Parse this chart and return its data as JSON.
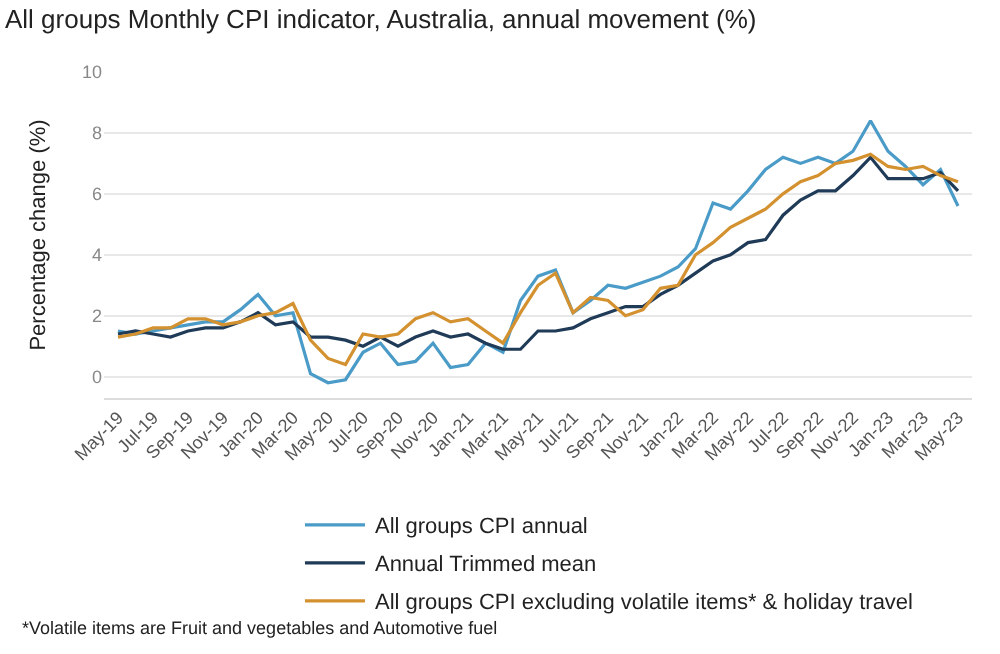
{
  "chart_data": {
    "type": "line",
    "title": "All groups Monthly CPI indicator, Australia, annual movement (%)",
    "ylabel": "Percentage change (%)",
    "categories": [
      "May-19",
      null,
      "Jul-19",
      null,
      "Sep-19",
      null,
      "Nov-19",
      null,
      "Jan-20",
      null,
      "Mar-20",
      null,
      "May-20",
      null,
      "Jul-20",
      null,
      "Sep-20",
      null,
      "Nov-20",
      null,
      "Jan-21",
      null,
      "Mar-21",
      null,
      "May-21",
      null,
      "Jul-21",
      null,
      "Sep-21",
      null,
      "Nov-21",
      null,
      "Jan-22",
      null,
      "Mar-22",
      null,
      "May-22",
      null,
      "Jul-22",
      null,
      "Sep-22",
      null,
      "Nov-22",
      null,
      "Jan-23",
      null,
      "Mar-23",
      null,
      "May-23"
    ],
    "series": [
      {
        "name": "All groups CPI annual",
        "color": "#4a9bc7",
        "values": [
          1.5,
          1.4,
          1.5,
          1.6,
          1.7,
          1.8,
          1.8,
          2.2,
          2.7,
          2.0,
          2.1,
          0.1,
          -0.2,
          -0.1,
          0.8,
          1.1,
          0.4,
          0.5,
          1.1,
          0.3,
          0.4,
          1.1,
          0.8,
          2.5,
          3.3,
          3.5,
          2.1,
          2.5,
          3.0,
          2.9,
          3.1,
          3.3,
          3.6,
          4.2,
          5.7,
          5.5,
          6.1,
          6.8,
          7.2,
          7.0,
          7.2,
          7.0,
          7.4,
          8.4,
          7.4,
          6.9,
          6.3,
          6.8,
          5.6
        ]
      },
      {
        "name": "Annual Trimmed mean",
        "color": "#1f3b57",
        "values": [
          1.4,
          1.5,
          1.4,
          1.3,
          1.5,
          1.6,
          1.6,
          1.8,
          2.1,
          1.7,
          1.8,
          1.3,
          1.3,
          1.2,
          1.0,
          1.3,
          1.0,
          1.3,
          1.5,
          1.3,
          1.4,
          1.1,
          0.9,
          0.9,
          1.5,
          1.5,
          1.6,
          1.9,
          2.1,
          2.3,
          2.3,
          2.7,
          3.0,
          3.4,
          3.8,
          4.0,
          4.4,
          4.5,
          5.3,
          5.8,
          6.1,
          6.1,
          6.6,
          7.2,
          6.5,
          6.5,
          6.5,
          6.7,
          6.1
        ]
      },
      {
        "name": "All groups CPI excluding volatile items* & holiday travel",
        "color": "#d4912f",
        "values": [
          1.3,
          1.4,
          1.6,
          1.6,
          1.9,
          1.9,
          1.7,
          1.8,
          2.0,
          2.1,
          2.4,
          1.2,
          0.6,
          0.4,
          1.4,
          1.3,
          1.4,
          1.9,
          2.1,
          1.8,
          1.9,
          1.5,
          1.1,
          2.1,
          3.0,
          3.4,
          2.1,
          2.6,
          2.5,
          2.0,
          2.2,
          2.9,
          3.0,
          4.0,
          4.4,
          4.9,
          5.2,
          5.5,
          6.0,
          6.4,
          6.6,
          7.0,
          7.1,
          7.3,
          6.9,
          6.8,
          6.9,
          6.6,
          6.4
        ]
      }
    ],
    "ylim": [
      -0.7,
      10
    ],
    "yticks": [
      0,
      2,
      4,
      6,
      8,
      10
    ],
    "grid": "y",
    "legend": "bottom",
    "marker": "none",
    "line_style": "solid",
    "annotations": [
      "*Volatile items are Fruit and vegetables and Automotive fuel"
    ]
  }
}
